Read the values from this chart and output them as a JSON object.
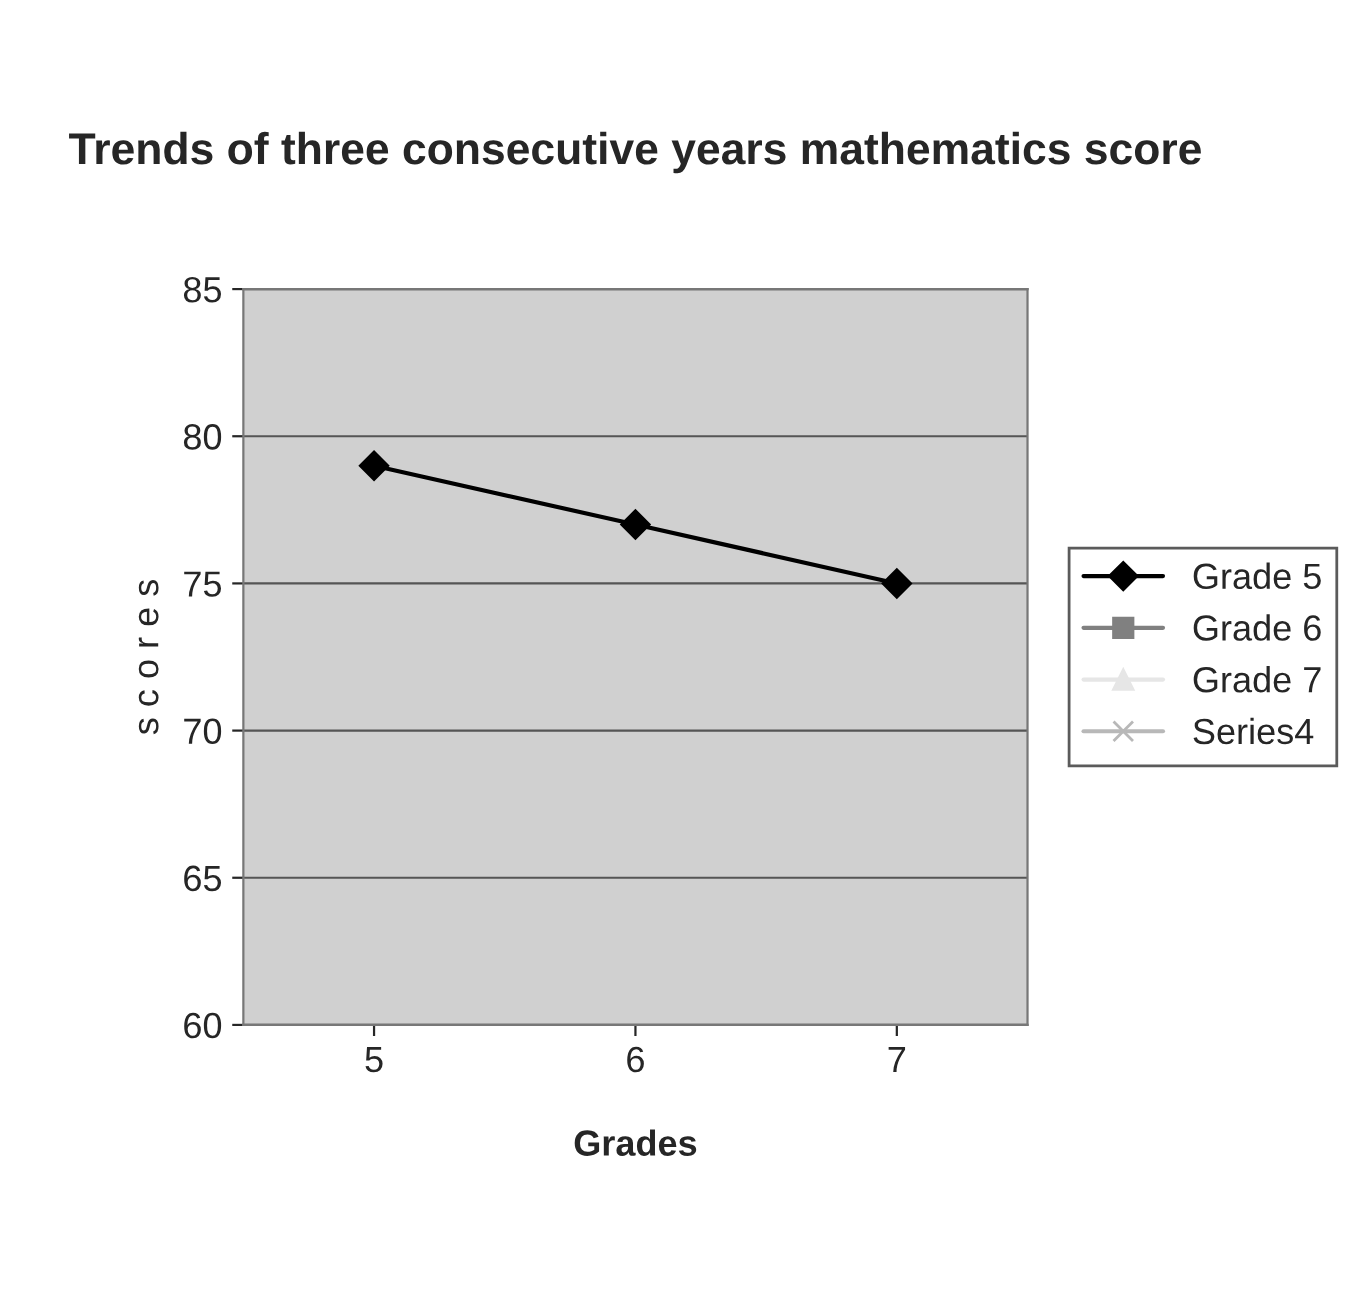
{
  "chart_data": {
    "type": "line",
    "title": "Trends of three consecutive years mathematics score",
    "xlabel": "Grades",
    "ylabel": "s c o r e s",
    "categories": [
      "5",
      "6",
      "7"
    ],
    "series": [
      {
        "name": "Grade 5",
        "color": "#000000",
        "marker": "diamond",
        "values": [
          79,
          77,
          75
        ]
      },
      {
        "name": "Grade 6",
        "color": "#808080",
        "marker": "square",
        "values": [
          null,
          null,
          null
        ]
      },
      {
        "name": "Grade 7",
        "color": "#e6e6e6",
        "marker": "triangle",
        "values": [
          null,
          null,
          null
        ]
      },
      {
        "name": "Series4",
        "color": "#b8b8b8",
        "marker": "cross",
        "values": [
          null,
          null,
          null
        ]
      }
    ],
    "ylim": [
      60,
      85
    ],
    "yticks": [
      60,
      65,
      70,
      75,
      80,
      85
    ],
    "grid": "y",
    "legend": "right",
    "line_style": "solid"
  }
}
